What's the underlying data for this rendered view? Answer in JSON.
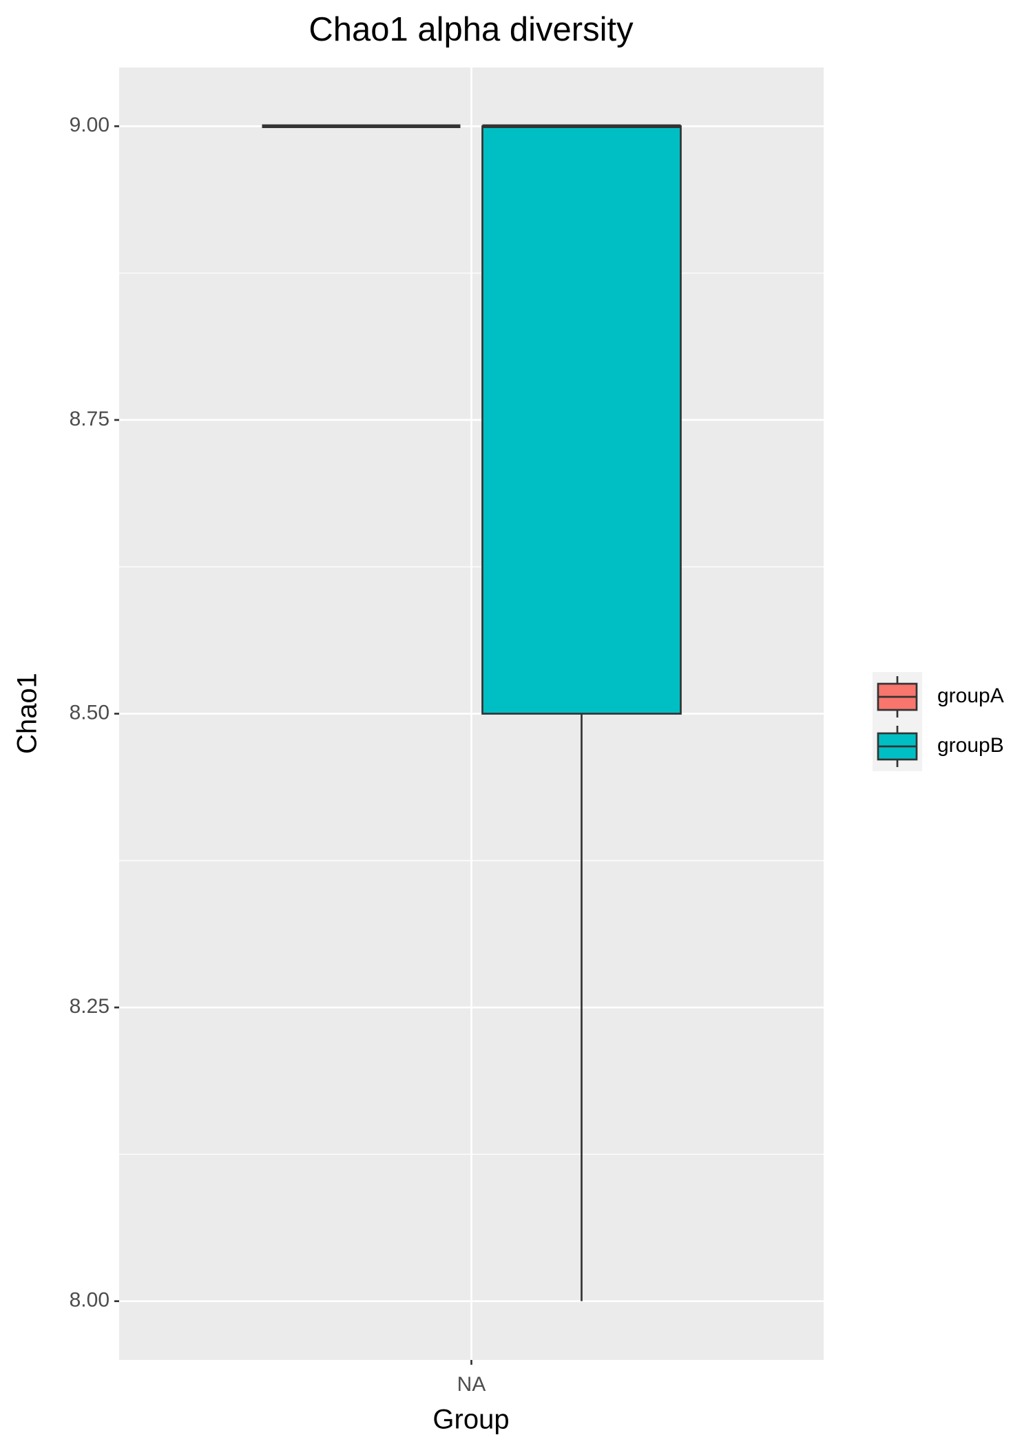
{
  "chart_data": {
    "type": "boxplot",
    "title": "Chao1 alpha diversity",
    "x_label": "Group",
    "y_label": "Chao1",
    "categories": [
      "NA"
    ],
    "series": [
      {
        "name": "groupA",
        "color": "#F8766D",
        "min": 9,
        "q1": 9,
        "median": 9,
        "q3": 9,
        "max": 9
      },
      {
        "name": "groupB",
        "color": "#00BFC4",
        "min": 8,
        "q1": 8.5,
        "median": 9,
        "q3": 9,
        "max": 9
      }
    ],
    "ylim": [
      7.95,
      9.05
    ],
    "yticks": [
      {
        "value": 8,
        "label": "8.00"
      },
      {
        "value": 8.25,
        "label": "8.25"
      },
      {
        "value": 8.5,
        "label": "8.50"
      },
      {
        "value": 8.75,
        "label": "8.75"
      },
      {
        "value": 9,
        "label": "9.00"
      }
    ],
    "grid": true,
    "legend": "right"
  }
}
